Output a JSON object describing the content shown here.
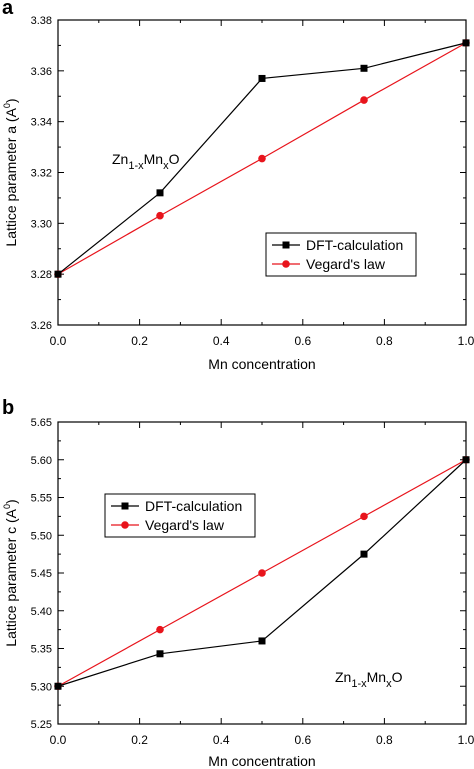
{
  "chart_data": [
    {
      "panel_label": "a",
      "type": "line",
      "xlabel": "Mn concentration",
      "ylabel": "Lattice parameter a (A",
      "ylabel_sup": "0",
      "ylabel_tail": ")",
      "xlim": [
        0.0,
        1.0
      ],
      "ylim": [
        3.26,
        3.38
      ],
      "xticks": [
        "0.0",
        "0.2",
        "0.4",
        "0.6",
        "0.8",
        "1.0"
      ],
      "yticks": [
        "3.26",
        "3.28",
        "3.30",
        "3.32",
        "3.34",
        "3.36",
        "3.38"
      ],
      "x": [
        0.0,
        0.25,
        0.5,
        0.75,
        1.0
      ],
      "series": [
        {
          "name": "DFT-calculation",
          "color": "#000000",
          "marker": "square",
          "values": [
            3.28,
            3.312,
            3.357,
            3.361,
            3.371
          ]
        },
        {
          "name": "Vegard's law",
          "color": "#e8141c",
          "marker": "circle",
          "values": [
            3.28,
            3.303,
            3.3255,
            3.3485,
            3.371
          ]
        }
      ],
      "legend_position": "center-right",
      "annotation": {
        "parts": [
          "Zn",
          "1-x",
          "Mn",
          "x",
          "O"
        ]
      }
    },
    {
      "panel_label": "b",
      "type": "line",
      "xlabel": "Mn concentration",
      "ylabel": "Lattice parameter c (A",
      "ylabel_sup": "0",
      "ylabel_tail": ")",
      "xlim": [
        0.0,
        1.0
      ],
      "ylim": [
        5.25,
        5.65
      ],
      "xticks": [
        "0.0",
        "0.2",
        "0.4",
        "0.6",
        "0.8",
        "1.0"
      ],
      "yticks": [
        "5.25",
        "5.30",
        "5.35",
        "5.40",
        "5.45",
        "5.50",
        "5.55",
        "5.60",
        "5.65"
      ],
      "x": [
        0.0,
        0.25,
        0.5,
        0.75,
        1.0
      ],
      "series": [
        {
          "name": "DFT-calculation",
          "color": "#000000",
          "marker": "square",
          "values": [
            5.3,
            5.343,
            5.36,
            5.475,
            5.6
          ]
        },
        {
          "name": "Vegard's law",
          "color": "#e8141c",
          "marker": "circle",
          "values": [
            5.3,
            5.375,
            5.45,
            5.525,
            5.6
          ]
        }
      ],
      "legend_position": "upper-left",
      "annotation": {
        "parts": [
          "Zn",
          "1-x",
          "Mn",
          "x",
          "O"
        ]
      }
    }
  ]
}
